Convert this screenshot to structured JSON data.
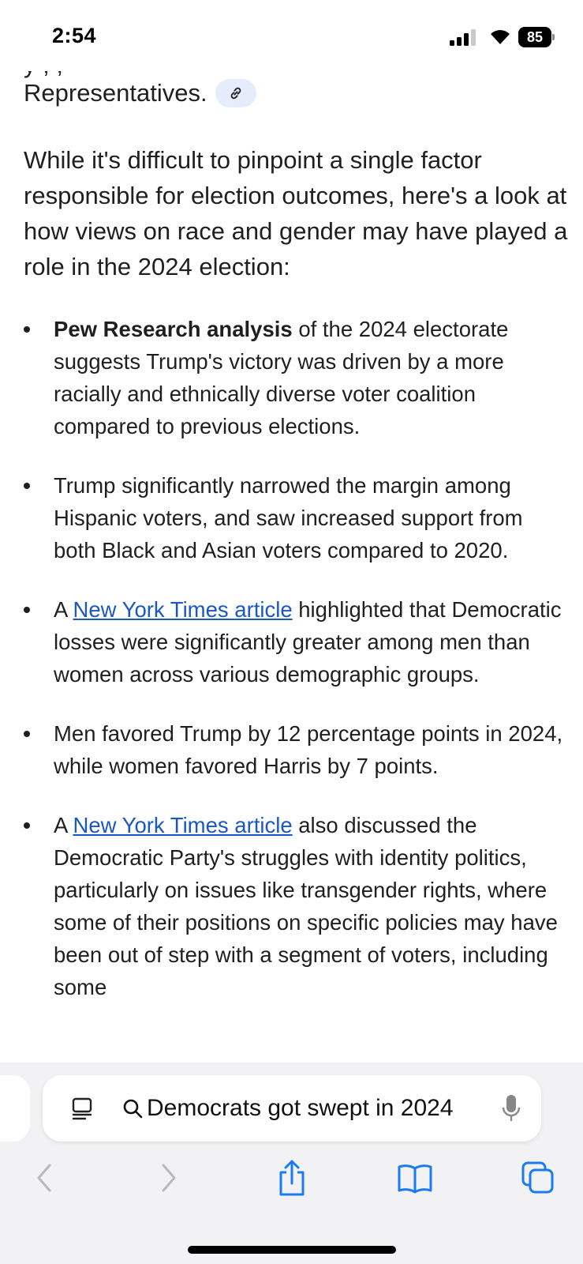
{
  "status_bar": {
    "time": "2:54",
    "battery": "85"
  },
  "content": {
    "clipped_text": "y , ,",
    "intro_tail": "Representatives.",
    "paragraph": "While it's difficult to pinpoint a single factor responsible for election outcomes, here's a look at how views on race and gender may have played a role in the 2024 election:",
    "bullets": [
      {
        "bold": "Pew Research analysis",
        "text": " of the 2024 electorate suggests Trump's victory was driven by a more racially and ethnically diverse voter coalition compared to previous elections."
      },
      {
        "text": "Trump significantly narrowed the margin among Hispanic voters, and saw increased support from both Black and Asian voters compared to 2020."
      },
      {
        "prefix": "A ",
        "link": "New York Times article",
        "text": " highlighted that Democratic losses were significantly greater among men than women across various demographic groups."
      },
      {
        "text": "Men favored Trump by 12 percentage points in 2024, while women favored Harris by 7 points."
      },
      {
        "prefix": "A ",
        "link": "New York Times article",
        "text": " also discussed the Democratic Party's struggles with identity politics, particularly on issues like transgender rights, where some of their positions on specific policies may have been out of step with a segment of voters, including some"
      }
    ]
  },
  "browser": {
    "address_text": "Democrats got swept in 2024",
    "icons": {
      "page": "page-menu-icon",
      "search": "search-icon",
      "mic": "microphone-icon",
      "back": "chevron-left-icon",
      "forward": "chevron-right-icon",
      "share": "share-icon",
      "bookmarks": "book-icon",
      "tabs": "tabs-icon"
    },
    "accent_color": "#1a7cf0"
  }
}
